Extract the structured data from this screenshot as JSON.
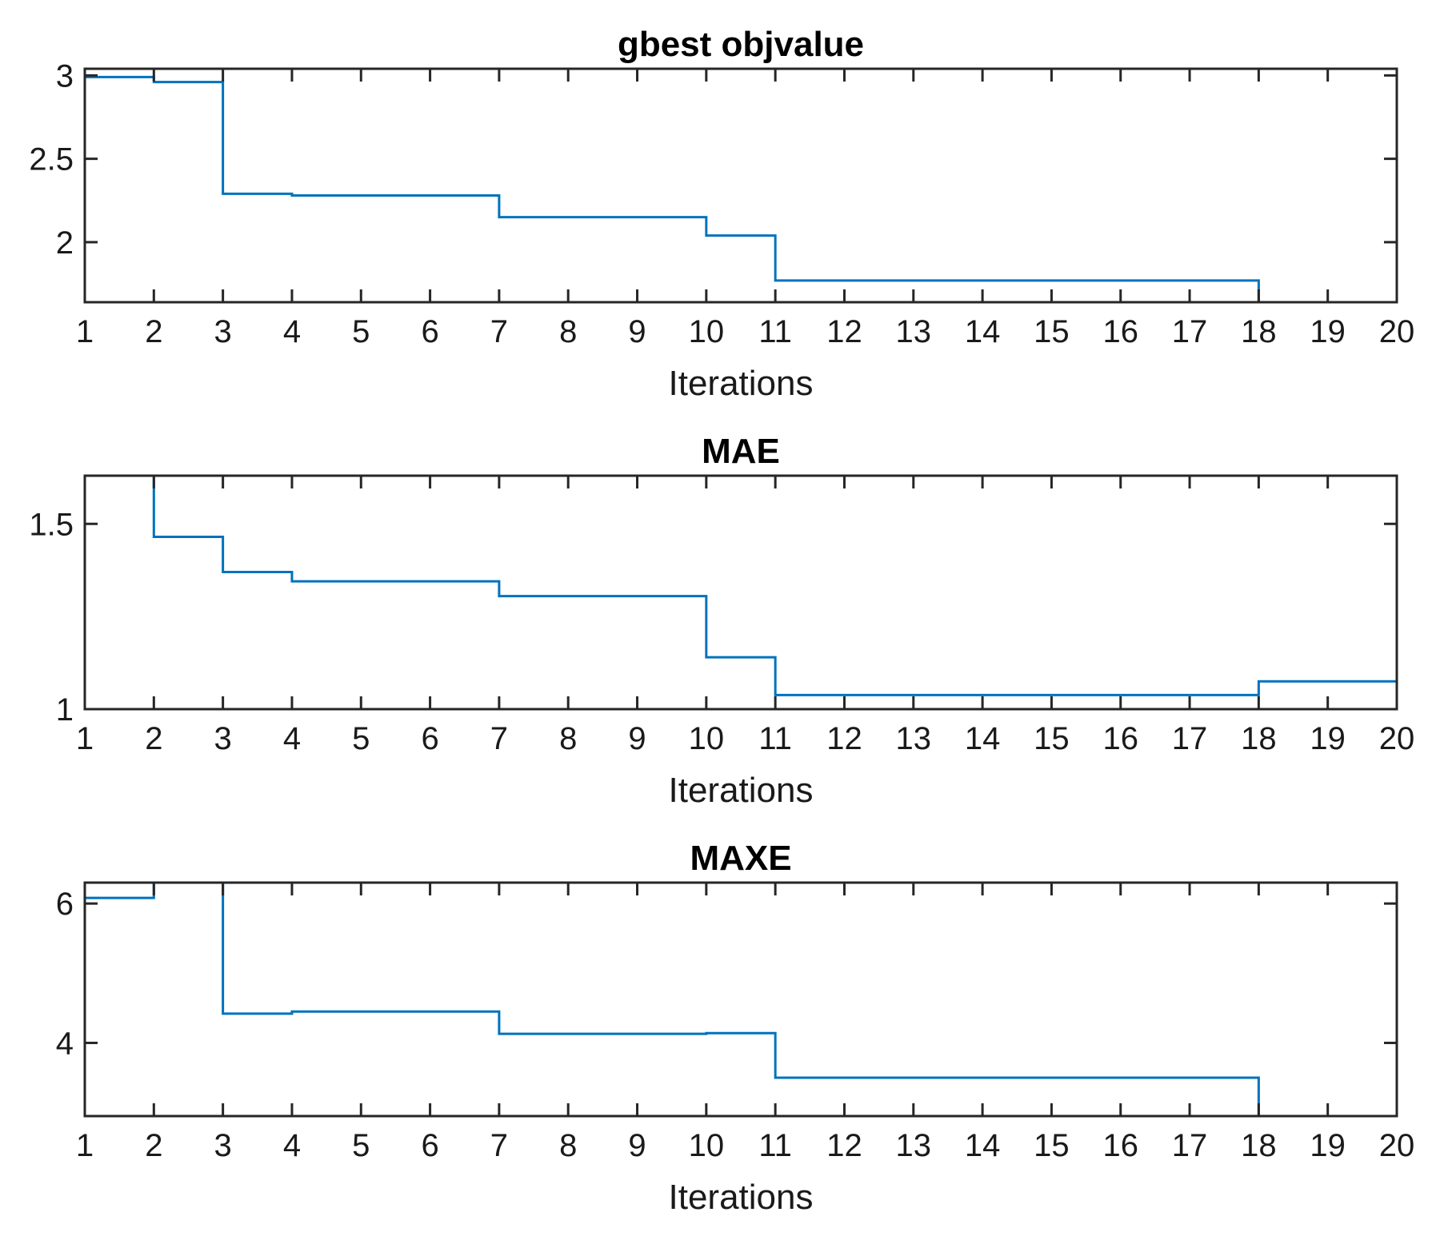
{
  "chart_data": [
    {
      "type": "line",
      "step": true,
      "title": "gbest objvalue",
      "xlabel": "Iterations",
      "ylabel": "",
      "xlim": [
        1,
        20
      ],
      "ylim": [
        1.64,
        3.04
      ],
      "xticks": [
        1,
        2,
        3,
        4,
        5,
        6,
        7,
        8,
        9,
        10,
        11,
        12,
        13,
        14,
        15,
        16,
        17,
        18,
        19,
        20
      ],
      "xtick_labels": [
        "1",
        "2",
        "3",
        "4",
        "5",
        "6",
        "7",
        "8",
        "9",
        "10",
        "11",
        "12",
        "13",
        "14",
        "15",
        "16",
        "17",
        "18",
        "19",
        "20"
      ],
      "yticks": [
        2,
        2.5,
        3
      ],
      "ytick_labels": [
        "2",
        "2.5",
        "3"
      ],
      "series": [
        {
          "name": "gbest objvalue",
          "color": "#0072BD",
          "x": [
            1,
            2,
            3,
            4,
            5,
            6,
            7,
            8,
            9,
            10,
            11,
            12,
            13,
            14,
            15,
            16,
            17,
            18,
            19,
            20
          ],
          "y": [
            2.99,
            2.96,
            2.29,
            2.28,
            2.28,
            2.28,
            2.15,
            2.15,
            2.15,
            2.04,
            1.77,
            1.77,
            1.77,
            1.77,
            1.77,
            1.77,
            1.77,
            1.64,
            1.64,
            1.64
          ]
        }
      ]
    },
    {
      "type": "line",
      "step": true,
      "title": "MAE",
      "xlabel": "Iterations",
      "ylabel": "",
      "xlim": [
        1,
        20
      ],
      "ylim": [
        1.0,
        1.63
      ],
      "xticks": [
        1,
        2,
        3,
        4,
        5,
        6,
        7,
        8,
        9,
        10,
        11,
        12,
        13,
        14,
        15,
        16,
        17,
        18,
        19,
        20
      ],
      "xtick_labels": [
        "1",
        "2",
        "3",
        "4",
        "5",
        "6",
        "7",
        "8",
        "9",
        "10",
        "11",
        "12",
        "13",
        "14",
        "15",
        "16",
        "17",
        "18",
        "19",
        "20"
      ],
      "yticks": [
        1,
        1.5
      ],
      "ytick_labels": [
        "1",
        "1.5"
      ],
      "series": [
        {
          "name": "MAE",
          "color": "#0072BD",
          "x": [
            1,
            2,
            3,
            4,
            5,
            6,
            7,
            8,
            9,
            10,
            11,
            12,
            13,
            14,
            15,
            16,
            17,
            18,
            19,
            20
          ],
          "y": [
            1.63,
            1.465,
            1.37,
            1.345,
            1.345,
            1.345,
            1.305,
            1.305,
            1.305,
            1.14,
            1.038,
            1.038,
            1.038,
            1.038,
            1.038,
            1.038,
            1.038,
            1.075,
            1.075,
            1.075
          ]
        }
      ]
    },
    {
      "type": "line",
      "step": true,
      "title": "MAXE",
      "xlabel": "Iterations",
      "ylabel": "",
      "xlim": [
        1,
        20
      ],
      "ylim": [
        2.95,
        6.3
      ],
      "xticks": [
        1,
        2,
        3,
        4,
        5,
        6,
        7,
        8,
        9,
        10,
        11,
        12,
        13,
        14,
        15,
        16,
        17,
        18,
        19,
        20
      ],
      "xtick_labels": [
        "1",
        "2",
        "3",
        "4",
        "5",
        "6",
        "7",
        "8",
        "9",
        "10",
        "11",
        "12",
        "13",
        "14",
        "15",
        "16",
        "17",
        "18",
        "19",
        "20"
      ],
      "yticks": [
        4,
        6
      ],
      "ytick_labels": [
        "4",
        "6"
      ],
      "series": [
        {
          "name": "MAXE",
          "color": "#0072BD",
          "x": [
            1,
            2,
            3,
            4,
            5,
            6,
            7,
            8,
            9,
            10,
            11,
            12,
            13,
            14,
            15,
            16,
            17,
            18,
            19,
            20
          ],
          "y": [
            6.08,
            6.3,
            4.42,
            4.45,
            4.45,
            4.45,
            4.13,
            4.13,
            4.13,
            4.14,
            3.5,
            3.5,
            3.5,
            3.5,
            3.5,
            3.5,
            3.5,
            2.95,
            2.95,
            2.95
          ]
        }
      ]
    }
  ]
}
